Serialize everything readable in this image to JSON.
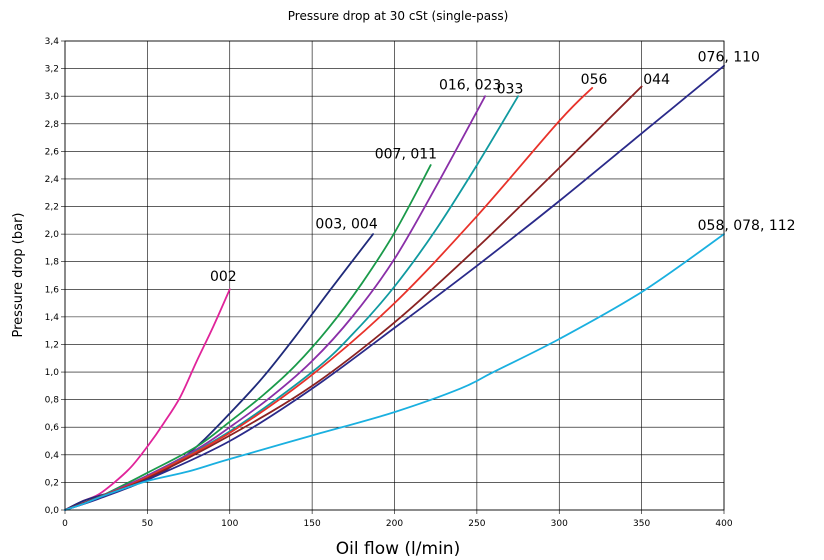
{
  "chart_data": {
    "type": "line",
    "title": "Pressure drop at 30 cSt (single-pass)",
    "xlabel": "Oil flow (l/min)",
    "ylabel": "Pressure drop (bar)",
    "xlim": [
      0,
      400
    ],
    "ylim": [
      0,
      3.4
    ],
    "grid": true,
    "x_ticks": [
      0,
      50,
      100,
      150,
      200,
      250,
      300,
      350,
      400
    ],
    "x_tick_labels": [
      "0",
      "50",
      "100",
      "150",
      "200",
      "250",
      "300",
      "350",
      "400"
    ],
    "y_ticks": [
      0,
      0.2,
      0.4,
      0.6,
      0.8,
      1.0,
      1.2,
      1.4,
      1.6,
      1.8,
      2.0,
      2.2,
      2.4,
      2.6,
      2.8,
      3.0,
      3.2,
      3.4
    ],
    "y_tick_labels": [
      "0,0",
      "0,2",
      "0,4",
      "0,6",
      "0,8",
      "1,0",
      "1,2",
      "1,4",
      "1,6",
      "1,8",
      "2,0",
      "2,2",
      "2,4",
      "2,6",
      "2,8",
      "3,0",
      "3,2",
      "3,4"
    ],
    "series": [
      {
        "name": "002",
        "color": "#e0249a",
        "x": [
          0,
          10,
          20,
          30,
          40,
          50,
          60,
          70,
          80,
          90,
          100
        ],
        "y": [
          0,
          0.06,
          0.11,
          0.2,
          0.31,
          0.46,
          0.63,
          0.82,
          1.08,
          1.33,
          1.6
        ]
      },
      {
        "name": "003, 004",
        "color": "#1f2a7a",
        "x": [
          0,
          10,
          20,
          40,
          60,
          80,
          100,
          120,
          140,
          160,
          187
        ],
        "y": [
          0,
          0.06,
          0.1,
          0.17,
          0.28,
          0.46,
          0.7,
          0.96,
          1.26,
          1.58,
          2.0
        ]
      },
      {
        "name": "007, 011",
        "color": "#1a9a4a",
        "x": [
          0,
          20,
          50,
          80,
          100,
          120,
          140,
          160,
          180,
          200,
          222
        ],
        "y": [
          0,
          0.09,
          0.27,
          0.46,
          0.64,
          0.83,
          1.05,
          1.32,
          1.64,
          2.01,
          2.5
        ]
      },
      {
        "name": "016, 023",
        "color": "#8a2fa8",
        "x": [
          0,
          20,
          50,
          80,
          100,
          125,
          150,
          175,
          200,
          225,
          255
        ],
        "y": [
          0,
          0.09,
          0.25,
          0.44,
          0.6,
          0.82,
          1.08,
          1.41,
          1.82,
          2.34,
          3.0
        ]
      },
      {
        "name": "033",
        "color": "#109aa0",
        "x": [
          0,
          20,
          50,
          100,
          150,
          175,
          200,
          225,
          250,
          275
        ],
        "y": [
          0,
          0.09,
          0.24,
          0.57,
          1.0,
          1.28,
          1.62,
          2.03,
          2.5,
          3.0
        ]
      },
      {
        "name": "056",
        "color": "#e8322a",
        "x": [
          0,
          20,
          50,
          100,
          150,
          200,
          250,
          300,
          320
        ],
        "y": [
          0,
          0.09,
          0.24,
          0.56,
          0.98,
          1.5,
          2.13,
          2.82,
          3.06
        ]
      },
      {
        "name": "044",
        "color": "#8a2222",
        "x": [
          0,
          20,
          50,
          100,
          150,
          200,
          250,
          300,
          350
        ],
        "y": [
          0,
          0.09,
          0.23,
          0.54,
          0.9,
          1.36,
          1.9,
          2.48,
          3.07
        ]
      },
      {
        "name": "076, 110",
        "color": "#2a2a8a",
        "x": [
          0,
          20,
          50,
          100,
          150,
          200,
          250,
          300,
          350,
          400
        ],
        "y": [
          0,
          0.08,
          0.22,
          0.5,
          0.88,
          1.32,
          1.77,
          2.24,
          2.73,
          3.22
        ]
      },
      {
        "name": "058, 078, 112",
        "color": "#1ab0e0",
        "x": [
          0,
          10,
          25,
          50,
          75,
          100,
          150,
          200,
          240,
          260,
          300,
          350,
          400
        ],
        "y": [
          0,
          0.04,
          0.11,
          0.21,
          0.28,
          0.37,
          0.54,
          0.71,
          0.88,
          1.0,
          1.24,
          1.58,
          2.0
        ]
      }
    ],
    "annotations": [
      {
        "text": "002",
        "x": 88,
        "y": 1.66
      },
      {
        "text": "003, 004",
        "x": 152,
        "y": 2.04
      },
      {
        "text": "007, 011",
        "x": 188,
        "y": 2.55
      },
      {
        "text": "016, 023",
        "x": 227,
        "y": 3.05
      },
      {
        "text": "033",
        "x": 262,
        "y": 3.02
      },
      {
        "text": "056",
        "x": 313,
        "y": 3.09
      },
      {
        "text": "044",
        "x": 351,
        "y": 3.09
      },
      {
        "text": "076, 110",
        "x": 384,
        "y": 3.25
      },
      {
        "text": "058, 078, 112",
        "x": 384,
        "y": 2.03
      }
    ]
  }
}
